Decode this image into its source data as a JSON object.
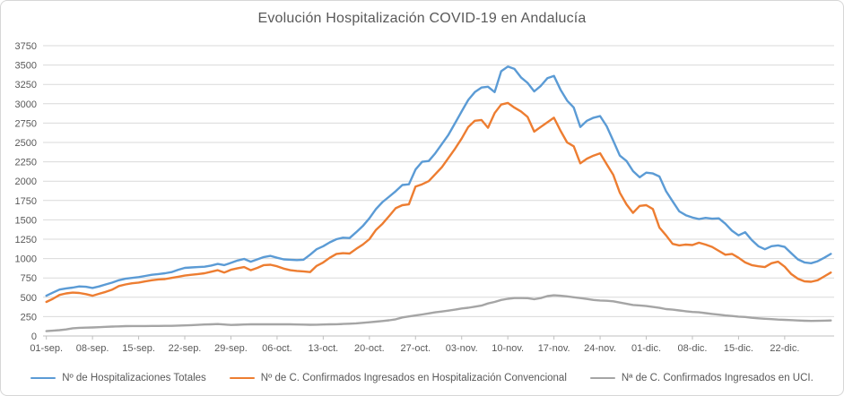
{
  "chart_data": {
    "type": "line",
    "title": "Evolución Hospitalización COVID-19 en Andalucía",
    "xlabel": "",
    "ylabel": "",
    "x_granularity": "daily",
    "x_tick_labels": [
      "01-sep.",
      "08-sep.",
      "15-sep.",
      "22-sep.",
      "29-sep.",
      "06-oct.",
      "13-oct.",
      "20-oct.",
      "27-oct.",
      "03-nov.",
      "10-nov.",
      "17-nov.",
      "24-nov.",
      "01-dic.",
      "08-dic.",
      "15-dic.",
      "22-dic."
    ],
    "x_tick_day_indices": [
      0,
      7,
      14,
      21,
      28,
      35,
      42,
      49,
      56,
      63,
      70,
      77,
      84,
      91,
      98,
      105,
      112
    ],
    "y_ticks": [
      0,
      250,
      500,
      750,
      1000,
      1250,
      1500,
      1750,
      2000,
      2250,
      2500,
      2750,
      3000,
      3250,
      3500,
      3750
    ],
    "ylim": [
      0,
      3750
    ],
    "grid": "horizontal",
    "legend_position": "bottom",
    "style": {
      "text_color": "#595959",
      "grid_color": "#D9D9D9",
      "axis_color": "#BFBFBF"
    },
    "series": [
      {
        "id": "totales",
        "name": "Nº de Hospitalizaciones Totales",
        "color": "#5B9BD5",
        "values": [
          520,
          560,
          600,
          615,
          625,
          640,
          635,
          620,
          640,
          665,
          690,
          720,
          740,
          750,
          760,
          775,
          790,
          800,
          810,
          825,
          855,
          880,
          885,
          890,
          895,
          910,
          930,
          915,
          945,
          975,
          995,
          960,
          990,
          1020,
          1035,
          1010,
          990,
          985,
          980,
          985,
          1050,
          1120,
          1160,
          1210,
          1250,
          1270,
          1265,
          1340,
          1420,
          1520,
          1640,
          1730,
          1800,
          1870,
          1950,
          1960,
          2150,
          2250,
          2260,
          2360,
          2480,
          2600,
          2750,
          2900,
          3050,
          3150,
          3210,
          3220,
          3150,
          3420,
          3480,
          3450,
          3340,
          3270,
          3160,
          3230,
          3330,
          3360,
          3180,
          3040,
          2950,
          2700,
          2780,
          2820,
          2840,
          2710,
          2520,
          2330,
          2260,
          2130,
          2050,
          2110,
          2100,
          2060,
          1870,
          1740,
          1610,
          1560,
          1530,
          1510,
          1525,
          1515,
          1520,
          1450,
          1360,
          1300,
          1340,
          1240,
          1160,
          1120,
          1160,
          1170,
          1150,
          1070,
          990,
          950,
          940,
          965,
          1010,
          1060
        ]
      },
      {
        "id": "convencional",
        "name": "Nº de C. Confirmados Ingresados en Hospitalización Convencional",
        "color": "#ED7D31",
        "values": [
          440,
          480,
          530,
          550,
          560,
          555,
          540,
          520,
          545,
          570,
          600,
          645,
          665,
          680,
          690,
          705,
          720,
          730,
          735,
          750,
          765,
          780,
          790,
          800,
          810,
          830,
          850,
          820,
          855,
          875,
          890,
          850,
          880,
          915,
          920,
          900,
          870,
          850,
          840,
          835,
          825,
          905,
          950,
          1010,
          1060,
          1070,
          1065,
          1125,
          1180,
          1250,
          1370,
          1450,
          1550,
          1650,
          1690,
          1700,
          1930,
          1960,
          2000,
          2090,
          2180,
          2300,
          2420,
          2550,
          2700,
          2780,
          2790,
          2690,
          2880,
          2990,
          3010,
          2950,
          2900,
          2830,
          2640,
          2700,
          2760,
          2820,
          2650,
          2500,
          2450,
          2230,
          2290,
          2330,
          2360,
          2220,
          2080,
          1850,
          1700,
          1590,
          1680,
          1690,
          1640,
          1400,
          1300,
          1190,
          1170,
          1180,
          1175,
          1205,
          1180,
          1150,
          1100,
          1050,
          1060,
          1010,
          950,
          915,
          900,
          890,
          940,
          960,
          895,
          800,
          740,
          706,
          700,
          720,
          770,
          820
        ]
      },
      {
        "id": "uci",
        "name": "Nª de C. Confirmados Ingresados en UCI.",
        "color": "#A5A5A5",
        "values": [
          62,
          68,
          75,
          85,
          100,
          105,
          108,
          110,
          114,
          118,
          121,
          124,
          127,
          128,
          128,
          129,
          130,
          130,
          131,
          131,
          134,
          137,
          140,
          144,
          148,
          151,
          154,
          148,
          142,
          145,
          148,
          150,
          152,
          150,
          150,
          151,
          152,
          150,
          148,
          147,
          145,
          146,
          148,
          150,
          152,
          155,
          158,
          163,
          170,
          177,
          185,
          193,
          202,
          215,
          240,
          252,
          265,
          278,
          292,
          305,
          316,
          328,
          340,
          355,
          365,
          378,
          392,
          420,
          440,
          465,
          480,
          490,
          490,
          488,
          475,
          490,
          515,
          525,
          520,
          512,
          500,
          490,
          478,
          465,
          458,
          455,
          448,
          432,
          415,
          401,
          395,
          386,
          375,
          363,
          347,
          340,
          330,
          320,
          310,
          305,
          295,
          285,
          275,
          265,
          258,
          250,
          245,
          235,
          228,
          222,
          218,
          212,
          208,
          205,
          200,
          197,
          195,
          196,
          198,
          200
        ]
      }
    ]
  }
}
